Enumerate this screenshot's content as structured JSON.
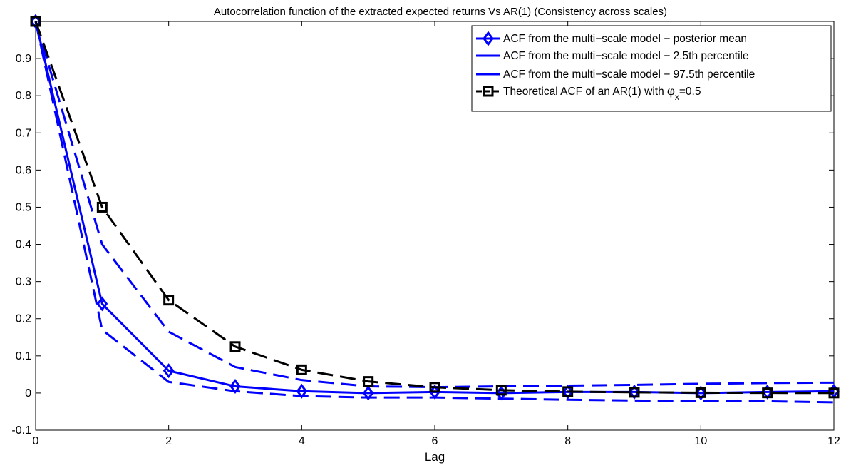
{
  "chart_data": {
    "type": "line",
    "title": "Autocorrelation function of the extracted expected returns Vs AR(1) (Consistency across scales)",
    "xlabel": "Lag",
    "ylabel": "",
    "xlim": [
      0,
      12
    ],
    "ylim": [
      -0.1,
      1.0
    ],
    "xticks": [
      0,
      2,
      4,
      6,
      8,
      10,
      12
    ],
    "yticks": [
      -0.1,
      0,
      0.1,
      0.2,
      0.3,
      0.4,
      0.5,
      0.6,
      0.7,
      0.8,
      0.9
    ],
    "grid": false,
    "legend_position": "top-right",
    "x": [
      0,
      1,
      2,
      3,
      4,
      5,
      6,
      7,
      8,
      9,
      10,
      11,
      12
    ],
    "series": [
      {
        "name": "ACF from the multi−scale model − posterior mean",
        "values": [
          1.0,
          0.24,
          0.06,
          0.018,
          0.005,
          0.0,
          0.003,
          0.0,
          0.003,
          0.003,
          0.0,
          0.003,
          0.005
        ],
        "color": "#0000ff",
        "line_style": "solid",
        "marker": "diamond"
      },
      {
        "name": "ACF from the multi−scale model − 2.5th percentile",
        "values": [
          1.0,
          0.17,
          0.03,
          0.005,
          -0.008,
          -0.012,
          -0.012,
          -0.015,
          -0.018,
          -0.02,
          -0.022,
          -0.022,
          -0.025
        ],
        "color": "#0000ff",
        "line_style": "dashed",
        "marker": "none",
        "legend_line_style": "solid"
      },
      {
        "name": "ACF from the multi−scale model − 97.5th percentile",
        "values": [
          1.0,
          0.4,
          0.165,
          0.07,
          0.035,
          0.018,
          0.016,
          0.018,
          0.02,
          0.022,
          0.025,
          0.027,
          0.028
        ],
        "color": "#0000ff",
        "line_style": "dashed",
        "marker": "none",
        "legend_line_style": "solid"
      },
      {
        "name_main": "Theoretical ACF of an AR(1) with ",
        "name_symbol": "φ",
        "name_subscript": "x",
        "name_tail": "=0.5",
        "values": [
          1.0,
          0.5,
          0.25,
          0.125,
          0.0625,
          0.03125,
          0.015625,
          0.0078125,
          0.0039,
          0.002,
          0.001,
          0.0005,
          0.0002
        ],
        "color": "#000000",
        "line_style": "dashed",
        "marker": "square"
      }
    ]
  }
}
